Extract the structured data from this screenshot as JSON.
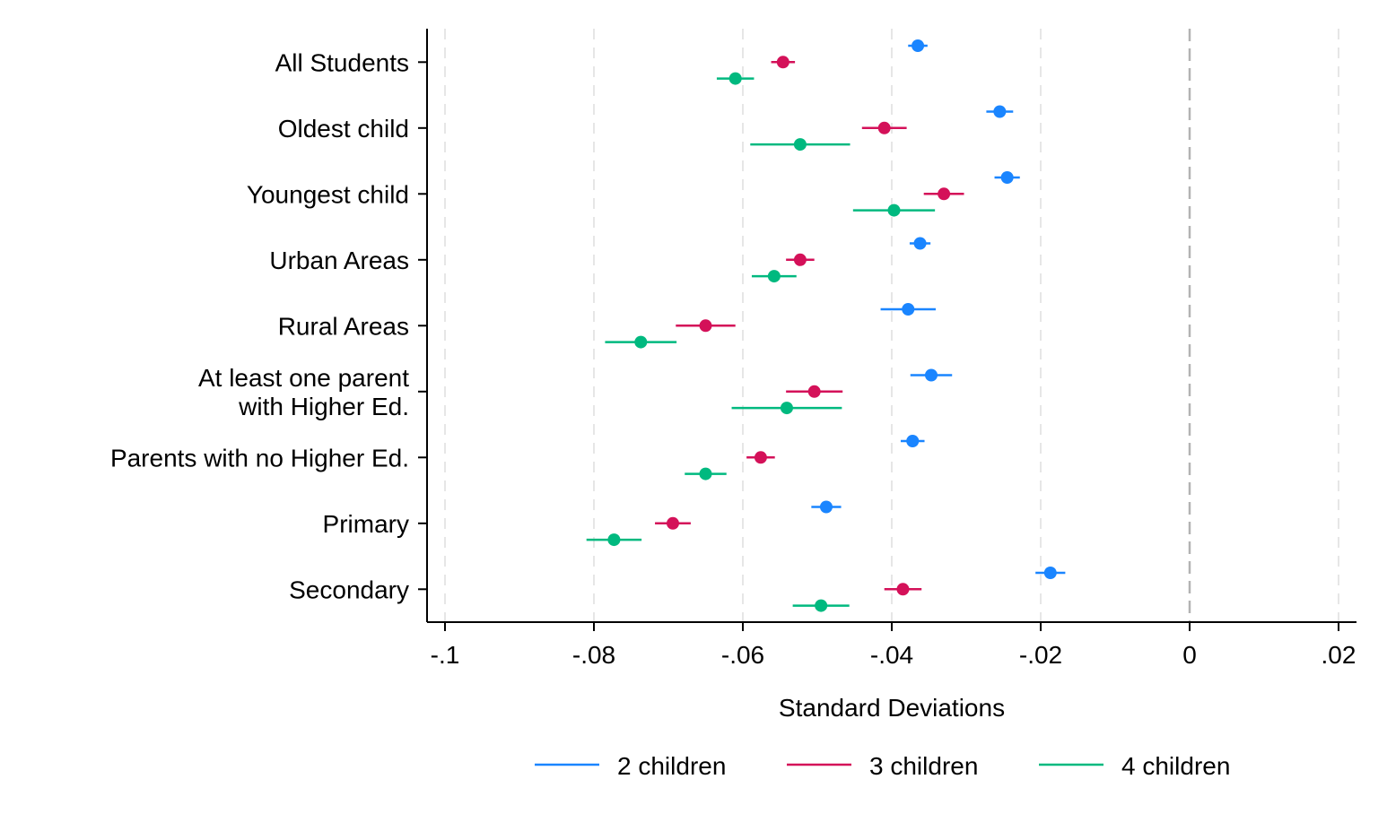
{
  "chart_data": {
    "type": "scatter",
    "subtype": "coefficient-plot-with-confidence-intervals",
    "title": "",
    "xlabel": "Standard Deviations",
    "ylabel": "",
    "xlim": [
      -0.1,
      0.02
    ],
    "x_ticks": [
      -0.1,
      -0.08,
      -0.06,
      -0.04,
      -0.02,
      0,
      0.02
    ],
    "x_tick_labels": [
      "-.1",
      "-.08",
      "-.06",
      "-.04",
      "-.02",
      "0",
      ".02"
    ],
    "reference_line": 0,
    "grid": true,
    "legend": "bottom",
    "categories": [
      [
        "All Students"
      ],
      [
        "Oldest child"
      ],
      [
        "Youngest child"
      ],
      [
        "Urban Areas"
      ],
      [
        "Rural Areas"
      ],
      [
        "At least one parent",
        "with Higher Ed."
      ],
      [
        "Parents with no Higher Ed."
      ],
      [
        "Primary"
      ],
      [
        "Secondary"
      ]
    ],
    "series": [
      {
        "name": "2 children",
        "color": "#1a85ff",
        "estimates": [
          -0.0365,
          -0.0255,
          -0.0245,
          -0.0362,
          -0.0378,
          -0.0347,
          -0.0372,
          -0.0488,
          -0.0187
        ],
        "ci_low": [
          -0.0378,
          -0.0273,
          -0.0262,
          -0.0376,
          -0.0415,
          -0.0375,
          -0.0388,
          -0.0508,
          -0.0207
        ],
        "ci_high": [
          -0.0352,
          -0.0237,
          -0.0228,
          -0.0348,
          -0.0341,
          -0.0319,
          -0.0356,
          -0.0468,
          -0.0167
        ]
      },
      {
        "name": "3 children",
        "color": "#d41159",
        "estimates": [
          -0.0546,
          -0.041,
          -0.033,
          -0.0523,
          -0.065,
          -0.0504,
          -0.0576,
          -0.0694,
          -0.0385
        ],
        "ci_low": [
          -0.0562,
          -0.044,
          -0.0357,
          -0.0542,
          -0.069,
          -0.0542,
          -0.0595,
          -0.0718,
          -0.041
        ],
        "ci_high": [
          -0.053,
          -0.038,
          -0.0303,
          -0.0504,
          -0.061,
          -0.0466,
          -0.0557,
          -0.067,
          -0.036
        ]
      },
      {
        "name": "4 children",
        "color": "#00b97f",
        "estimates": [
          -0.061,
          -0.0523,
          -0.0397,
          -0.0558,
          -0.0737,
          -0.0541,
          -0.065,
          -0.0773,
          -0.0495
        ],
        "ci_low": [
          -0.0635,
          -0.059,
          -0.0452,
          -0.0588,
          -0.0785,
          -0.0615,
          -0.0678,
          -0.081,
          -0.0533
        ],
        "ci_high": [
          -0.0585,
          -0.0456,
          -0.0342,
          -0.0528,
          -0.0689,
          -0.0467,
          -0.0622,
          -0.0736,
          -0.0457
        ]
      }
    ]
  }
}
